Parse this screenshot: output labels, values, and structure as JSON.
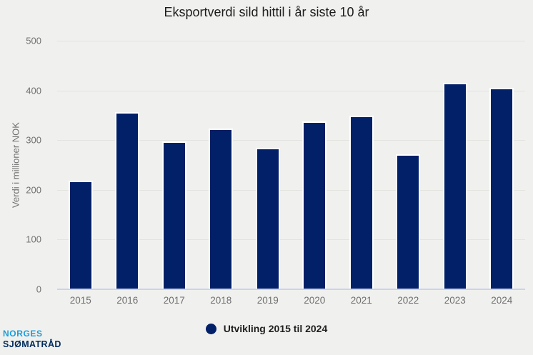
{
  "chart_data": {
    "type": "bar",
    "title": "Eksportverdi sild hittil i år siste 10 år",
    "categories": [
      "2015",
      "2016",
      "2017",
      "2018",
      "2019",
      "2020",
      "2021",
      "2022",
      "2023",
      "2024"
    ],
    "values": [
      216,
      353,
      294,
      320,
      282,
      335,
      346,
      269,
      413,
      402
    ],
    "series_name": "Utvikling 2015 til 2024",
    "xlabel": "",
    "ylabel": "Verdi i millioner NOK",
    "ylim": [
      0,
      500
    ],
    "yticks": [
      0,
      100,
      200,
      300,
      400,
      500
    ],
    "grid": true,
    "legend_position": "bottom",
    "bar_color": "#022068"
  },
  "legend": {
    "label": "Utvikling 2015 til 2024",
    "marker_color": "#022068"
  },
  "logo": {
    "line1": "NORGES",
    "line2": "SJØMATRÅD",
    "line1_color": "#1d9bd8",
    "line2_color": "#002a5c"
  },
  "colors": {
    "background": "#f0f1ee",
    "gridline": "#e3e4e0",
    "axis_line": "#ccd2ec",
    "tick_text": "#717171",
    "title_text": "#1c1c1c"
  }
}
